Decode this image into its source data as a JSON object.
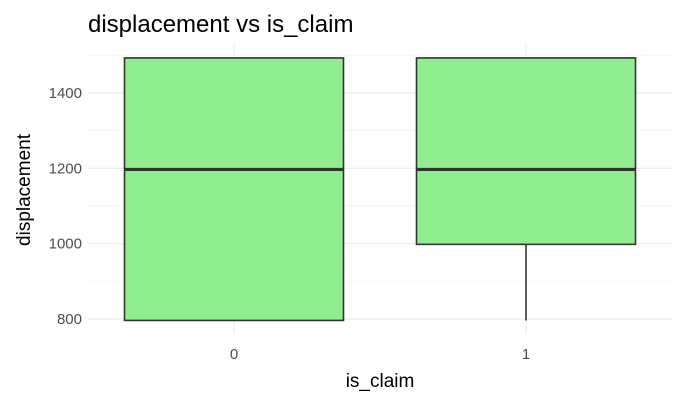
{
  "chart_data": {
    "type": "boxplot",
    "title": "displacement vs is_claim",
    "xlabel": "is_claim",
    "ylabel": "displacement",
    "categories": [
      "0",
      "1"
    ],
    "boxes": [
      {
        "category": "0",
        "min": 796,
        "q1": 796,
        "median": 1197,
        "q3": 1493,
        "max": 1493
      },
      {
        "category": "1",
        "min": 796,
        "q1": 998,
        "median": 1197,
        "q3": 1493,
        "max": 1493
      }
    ],
    "ylim": [
      760,
      1530
    ],
    "yticks": [
      800,
      1000,
      1200,
      1400
    ],
    "fill_color": "#90EE90",
    "line_color": "#333333",
    "grid": true,
    "legend": "none"
  }
}
